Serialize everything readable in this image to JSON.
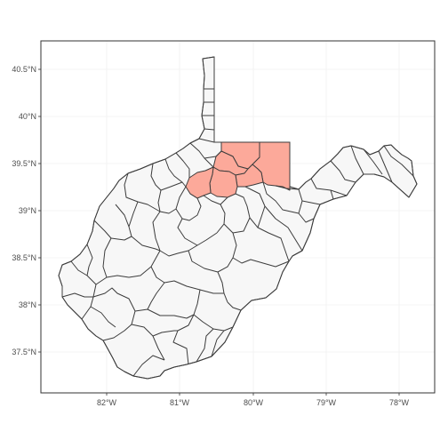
{
  "map": {
    "region": "West Virginia",
    "projection": "longitude / latitude",
    "background": "#ffffff",
    "gridlines": true,
    "legend": "none",
    "county_fill": "#f7f7f7",
    "county_stroke": "#3c3c3c",
    "highlight_fill": "#fca99a",
    "highlighted_counties": [
      "Doddridge",
      "Harrison",
      "Marion",
      "Monongalia",
      "Preston",
      "Taylor"
    ],
    "lon_range": [
      -82.9,
      -77.5
    ],
    "lat_range": [
      37.05,
      40.7
    ],
    "x_ticks": [
      "82°W",
      "81°W",
      "80°W",
      "79°W",
      "78°W"
    ],
    "y_ticks": [
      "37.5°N",
      "38°N",
      "38.5°N",
      "39°N",
      "39.5°N",
      "40°N",
      "40.5°N"
    ]
  }
}
